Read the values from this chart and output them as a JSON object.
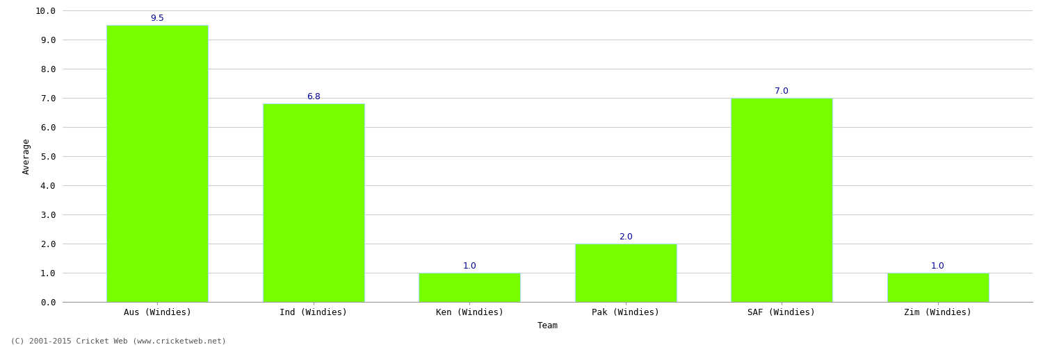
{
  "categories": [
    "Aus (Windies)",
    "Ind (Windies)",
    "Ken (Windies)",
    "Pak (Windies)",
    "SAF (Windies)",
    "Zim (Windies)"
  ],
  "values": [
    9.5,
    6.8,
    1.0,
    2.0,
    7.0,
    1.0
  ],
  "bar_color": "#77ff00",
  "bar_edge_color": "#aaddff",
  "value_color": "#000099",
  "xlabel": "Team",
  "ylabel": "Average",
  "ylim": [
    0,
    10
  ],
  "yticks": [
    0.0,
    1.0,
    2.0,
    3.0,
    4.0,
    5.0,
    6.0,
    7.0,
    8.0,
    9.0,
    10.0
  ],
  "grid_color": "#cccccc",
  "background_color": "#ffffff",
  "footer": "(C) 2001-2015 Cricket Web (www.cricketweb.net)",
  "value_fontsize": 9,
  "label_fontsize": 9,
  "tick_fontsize": 9,
  "footer_fontsize": 8,
  "bar_width": 0.65
}
